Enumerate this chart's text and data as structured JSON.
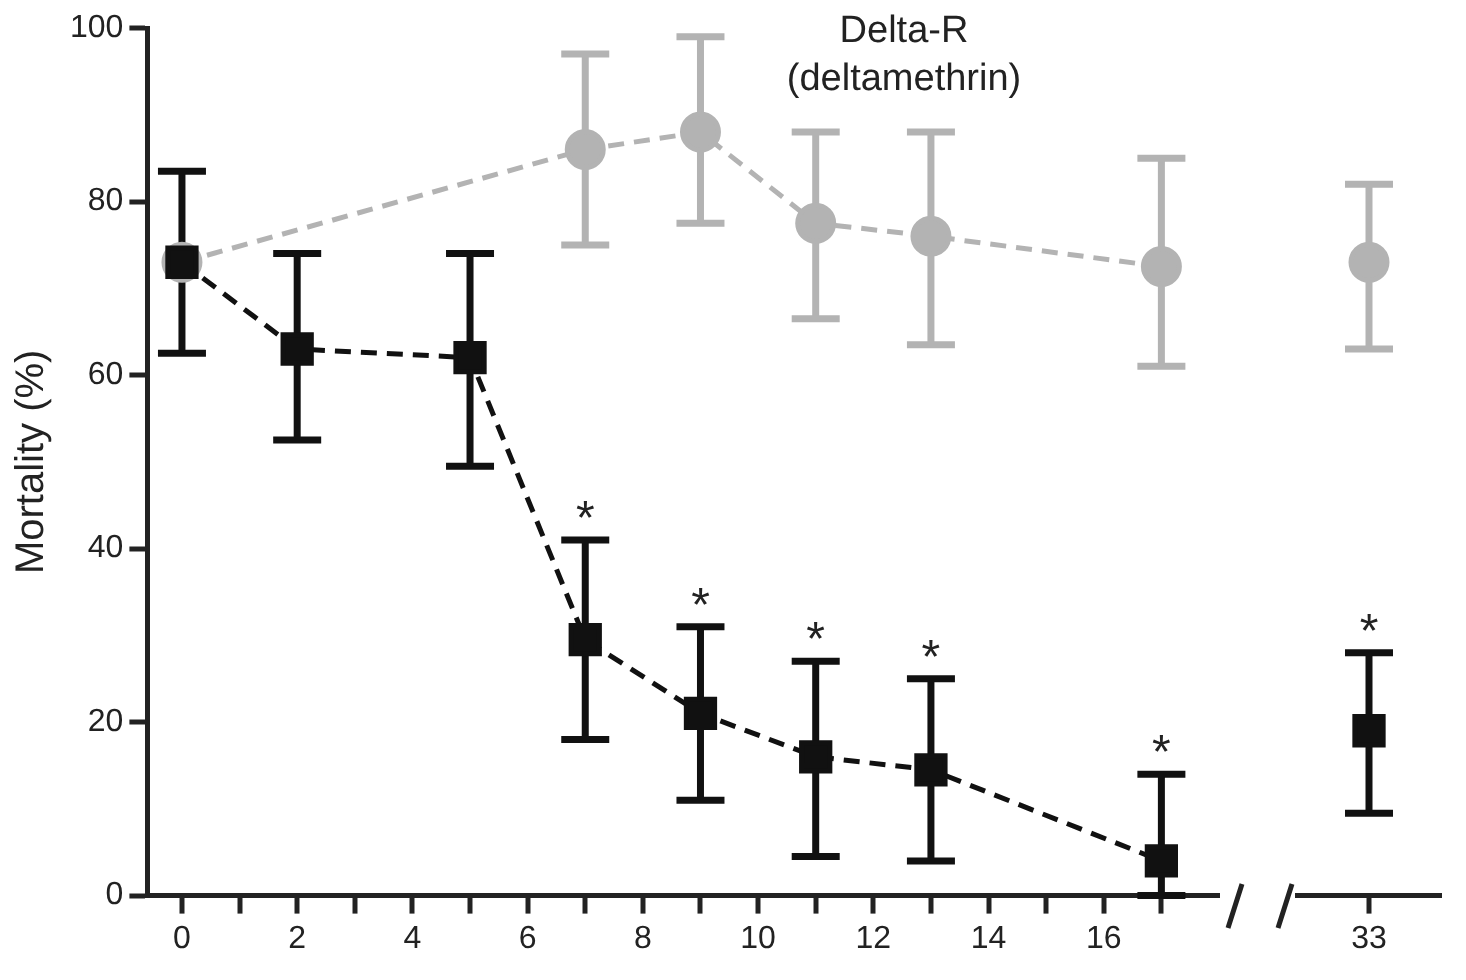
{
  "chart_data": [
    {
      "type": "line",
      "title": "Delta-R (deltamethrin)",
      "ylabel": "Mortality (%)",
      "xlim": [
        -0.6,
        18
      ],
      "ylim": [
        0,
        100
      ],
      "xticks": [
        0,
        {
          "value": 1,
          "label": null
        },
        2,
        {
          "value": 3,
          "label": null
        },
        4,
        {
          "value": 5,
          "label": null
        },
        6,
        {
          "value": 7,
          "label": null
        },
        8,
        {
          "value": 9,
          "label": null
        },
        10,
        {
          "value": 11,
          "label": null
        },
        12,
        {
          "value": 13,
          "label": null
        },
        14,
        {
          "value": 15,
          "label": null
        },
        16,
        {
          "value": 17,
          "label": null
        }
      ],
      "yticks": [
        0,
        20,
        40,
        60,
        80,
        100
      ],
      "grid": false,
      "legend": false,
      "line_style": "dashed",
      "series": [
        {
          "color": "#111111",
          "marker": "square",
          "x": [
            0,
            2,
            5,
            7,
            9,
            11,
            13,
            17
          ],
          "values": [
            73,
            63,
            62,
            29.5,
            21,
            16,
            14.5,
            4
          ],
          "errors": [
            [
              62.5,
              83.5
            ],
            [
              52.5,
              74
            ],
            [
              49.5,
              74
            ],
            [
              18,
              41
            ],
            [
              11,
              31
            ],
            [
              4.5,
              27
            ],
            [
              4,
              25
            ],
            [
              0,
              14
            ]
          ]
        },
        {
          "color": "#b3b3b3",
          "marker": "circle",
          "x": [
            0,
            7,
            9,
            11,
            13,
            17
          ],
          "values": [
            73,
            86,
            88,
            77.5,
            76,
            72.5
          ],
          "errors": [
            null,
            [
              75,
              97
            ],
            [
              77.5,
              99
            ],
            [
              66.5,
              88
            ],
            [
              63.5,
              88
            ],
            [
              61,
              85
            ]
          ]
        }
      ],
      "annotations": [
        {
          "text": "*",
          "x": 7,
          "y": 41
        },
        {
          "text": "*",
          "x": 9,
          "y": 31
        },
        {
          "text": "*",
          "x": 11,
          "y": 27
        },
        {
          "text": "*",
          "x": 13,
          "y": 25
        },
        {
          "text": "*",
          "x": 17,
          "y": 14
        }
      ]
    },
    {
      "type": "line",
      "categories": [
        "33"
      ],
      "ylim": [
        0,
        100
      ],
      "tick_labels": "x",
      "grid": false,
      "legend": false,
      "series": [
        {
          "color": "#111111",
          "marker": "square",
          "values": [
            19
          ],
          "errors": [
            [
              9.5,
              28
            ]
          ]
        },
        {
          "color": "#b3b3b3",
          "marker": "circle",
          "values": [
            73
          ],
          "errors": [
            [
              63,
              82
            ]
          ]
        }
      ],
      "annotations": [
        {
          "text": "*",
          "x": "33",
          "y": 28
        }
      ]
    }
  ]
}
